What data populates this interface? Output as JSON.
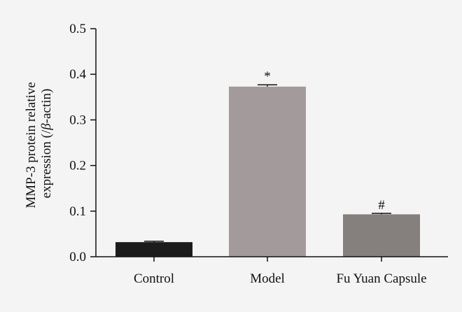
{
  "chart_data": {
    "type": "bar",
    "categories": [
      "Control",
      "Model",
      "Fu Yuan Capsule"
    ],
    "values": [
      0.032,
      0.373,
      0.093
    ],
    "errors": [
      0.002,
      0.004,
      0.002
    ],
    "annotations": [
      "",
      "*",
      "#"
    ],
    "bar_colors": [
      "#1c1c1c",
      "#a39b9b",
      "#857f7e"
    ],
    "title": "",
    "xlabel": "",
    "ylabel_line1": "MMP-3 protein relative",
    "ylabel_line2_prefix": "expression (/",
    "ylabel_line2_symbol": "β",
    "ylabel_line2_suffix": "-actin)",
    "ylim": [
      0,
      0.5
    ],
    "yticks": [
      "0.0",
      "0.1",
      "0.2",
      "0.3",
      "0.4",
      "0.5"
    ],
    "grid": false,
    "legend": "none"
  },
  "colors": {
    "background": "#f4f4f4",
    "axis": "#111111"
  }
}
